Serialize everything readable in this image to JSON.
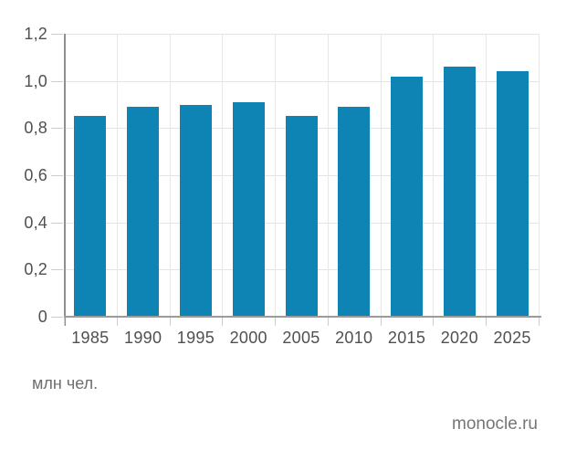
{
  "chart_data": {
    "type": "bar",
    "categories": [
      "1985",
      "1990",
      "1995",
      "2000",
      "2005",
      "2010",
      "2015",
      "2020",
      "2025"
    ],
    "values": [
      0.85,
      0.89,
      0.9,
      0.91,
      0.85,
      0.89,
      1.02,
      1.06,
      1.04
    ],
    "title": "",
    "xlabel": "",
    "ylabel": "",
    "unit_note": "млн чел.",
    "ylim": [
      0,
      1.2
    ],
    "y_tick_values": [
      0,
      0.2,
      0.4,
      0.6,
      0.8,
      1.0,
      1.2
    ],
    "y_tick_labels": [
      "0",
      "0,2",
      "0,4",
      "0,6",
      "0,8",
      "1,0",
      "1,2"
    ],
    "grid": true,
    "legend": "none",
    "bar_color": "#0e84b4"
  },
  "footer": {
    "source": "monocle.ru"
  }
}
